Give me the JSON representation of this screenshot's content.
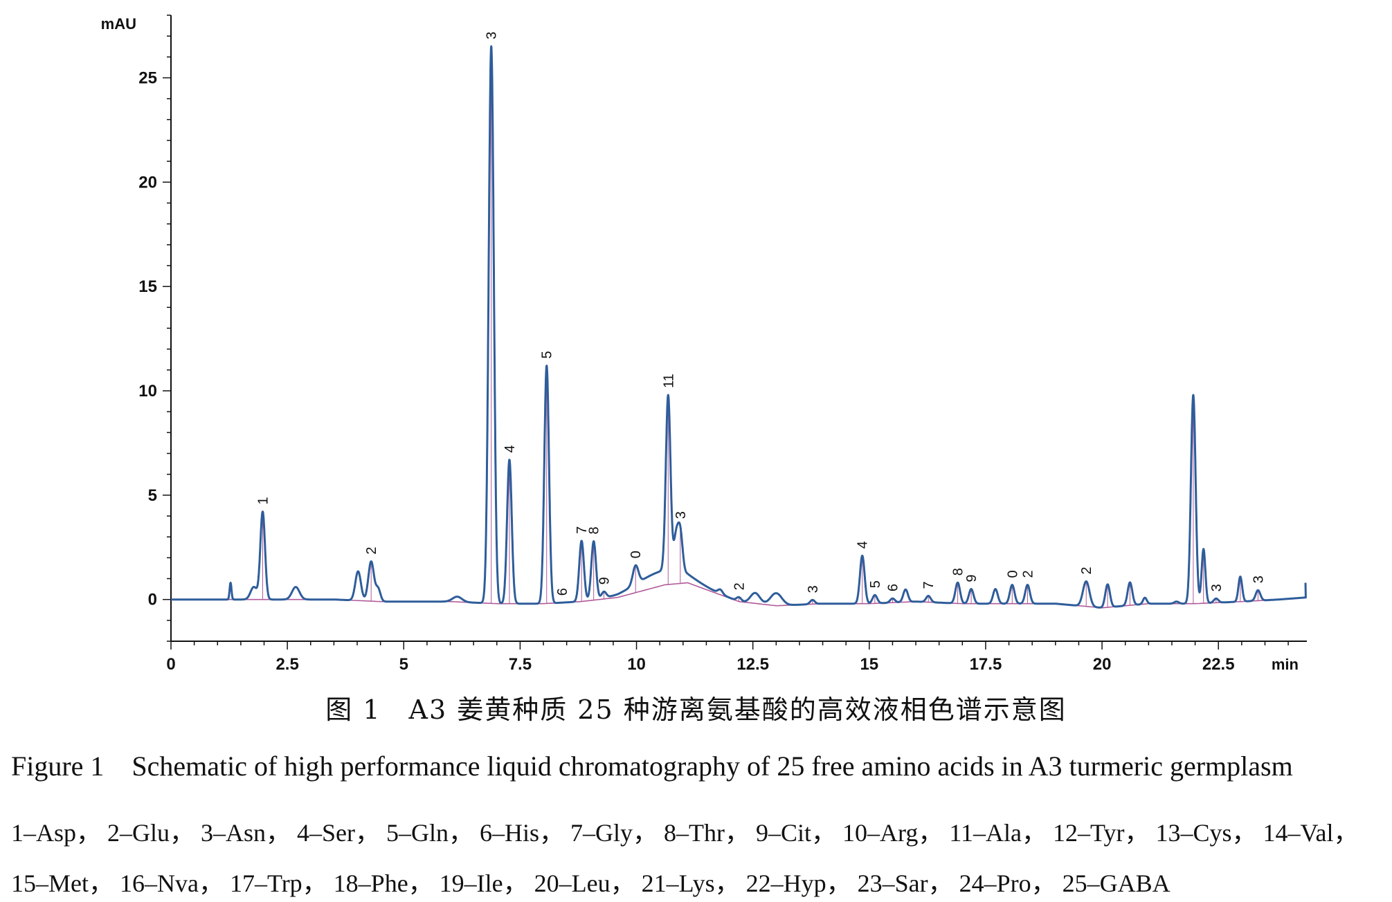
{
  "chart_data": {
    "type": "line",
    "ylabel": "mAU",
    "xlabel": "min",
    "xlim": [
      0,
      24.4
    ],
    "ylim": [
      -2,
      28
    ],
    "x_ticks": [
      0,
      2.5,
      5,
      7.5,
      10,
      12.5,
      15,
      17.5,
      20,
      22.5
    ],
    "x_tick_labels": [
      "0",
      "2.5",
      "5",
      "7.5",
      "10",
      "12.5",
      "15",
      "17.5",
      "20",
      "22.5"
    ],
    "y_ticks": [
      0,
      5,
      10,
      15,
      20,
      25
    ],
    "y_tick_labels": [
      "0",
      "5",
      "10",
      "15",
      "20",
      "25"
    ],
    "grid": false,
    "series_color": "#2e5d9a",
    "baseline_color": "#b05a9a",
    "baseline": [
      0,
      0,
      0,
      0,
      -0.1,
      -0.1,
      -0.2,
      -0.2,
      -0.1,
      0.1,
      0.7,
      0.8,
      -0.1,
      -0.3,
      -0.2,
      -0.2,
      -0.1,
      -0.2,
      -0.2,
      -0.2,
      -0.4,
      -0.2,
      -0.2,
      -0.1,
      0,
      0.1
    ],
    "baseline_x": [
      0,
      1.5,
      2.7,
      3.5,
      4.5,
      6.0,
      7.0,
      8.0,
      8.8,
      9.6,
      10.6,
      11.1,
      12.2,
      13.0,
      14.0,
      15.0,
      16.0,
      17.0,
      18.0,
      19.0,
      20.0,
      21.0,
      22.0,
      23.0,
      23.8,
      24.4
    ],
    "peaks": [
      {
        "label": "1",
        "rt": 1.97,
        "height": 4.2,
        "width": 0.05
      },
      {
        "label": "2",
        "rt": 4.3,
        "height": 1.9,
        "width": 0.06
      },
      {
        "label": "3",
        "rt": 6.88,
        "height": 26.7,
        "width": 0.055
      },
      {
        "label": "4",
        "rt": 7.27,
        "height": 6.9,
        "width": 0.05
      },
      {
        "label": "5",
        "rt": 8.07,
        "height": 11.4,
        "width": 0.05
      },
      {
        "label": "6",
        "rt": 8.4,
        "height": 0.0,
        "width": 0.05
      },
      {
        "label": "7",
        "rt": 8.82,
        "height": 2.9,
        "width": 0.05
      },
      {
        "label": "8",
        "rt": 9.08,
        "height": 2.8,
        "width": 0.05
      },
      {
        "label": "9",
        "rt": 9.3,
        "height": 0.3,
        "width": 0.05
      },
      {
        "label": "0",
        "rt": 9.98,
        "height": 0.9,
        "width": 0.06
      },
      {
        "label": "11",
        "rt": 10.68,
        "height": 8.4,
        "width": 0.05
      },
      {
        "label": "3",
        "rt": 10.94,
        "height": 1.9,
        "width": 0.05
      },
      {
        "label": "2",
        "rt": 12.2,
        "height": 0.2,
        "width": 0.05
      },
      {
        "label": "3",
        "rt": 13.78,
        "height": 0.2,
        "width": 0.05
      },
      {
        "label": "4",
        "rt": 14.85,
        "height": 2.3,
        "width": 0.05
      },
      {
        "label": "5",
        "rt": 15.12,
        "height": 0.4,
        "width": 0.05
      },
      {
        "label": "6",
        "rt": 15.5,
        "height": 0.2,
        "width": 0.05
      },
      {
        "label": "7",
        "rt": 16.27,
        "height": 0.3,
        "width": 0.05
      },
      {
        "label": "8",
        "rt": 16.9,
        "height": 1.0,
        "width": 0.05
      },
      {
        "label": "9",
        "rt": 17.19,
        "height": 0.7,
        "width": 0.05
      },
      {
        "label": "0",
        "rt": 18.07,
        "height": 0.9,
        "width": 0.05
      },
      {
        "label": "2",
        "rt": 18.4,
        "height": 0.9,
        "width": 0.05
      },
      {
        "label": "2",
        "rt": 19.66,
        "height": 1.2,
        "width": 0.07
      },
      {
        "label": "",
        "rt": 20.12,
        "height": 1.1,
        "width": 0.05
      },
      {
        "label": "",
        "rt": 20.6,
        "height": 1.1,
        "width": 0.05
      },
      {
        "label": "",
        "rt": 21.96,
        "height": 10.0,
        "width": 0.05
      },
      {
        "label": "",
        "rt": 22.18,
        "height": 2.6,
        "width": 0.04
      },
      {
        "label": "3",
        "rt": 22.45,
        "height": 0.2,
        "width": 0.05
      },
      {
        "label": "",
        "rt": 22.97,
        "height": 1.2,
        "width": 0.04
      },
      {
        "label": "3",
        "rt": 23.35,
        "height": 0.5,
        "width": 0.05
      }
    ],
    "minor_bumps": [
      {
        "rt": 1.28,
        "height": 0.8,
        "width": 0.02
      },
      {
        "rt": 1.78,
        "height": 0.6,
        "width": 0.07
      },
      {
        "rt": 2.68,
        "height": 0.6,
        "width": 0.08
      },
      {
        "rt": 4.02,
        "height": 1.4,
        "width": 0.06
      },
      {
        "rt": 4.45,
        "height": 0.6,
        "width": 0.05
      },
      {
        "rt": 6.15,
        "height": 0.25,
        "width": 0.1
      },
      {
        "rt": 10.85,
        "height": 1.6,
        "width": 0.05
      },
      {
        "rt": 11.8,
        "height": 0.2,
        "width": 0.05
      },
      {
        "rt": 12.55,
        "height": 0.5,
        "width": 0.1
      },
      {
        "rt": 13.0,
        "height": 0.6,
        "width": 0.12
      },
      {
        "rt": 15.78,
        "height": 0.6,
        "width": 0.05
      },
      {
        "rt": 17.71,
        "height": 0.7,
        "width": 0.05
      },
      {
        "rt": 20.92,
        "height": 0.3,
        "width": 0.04
      },
      {
        "rt": 21.6,
        "height": 0.1,
        "width": 0.05
      }
    ],
    "broad_hump": {
      "center": 10.55,
      "height": 0.7,
      "width": 0.55
    }
  },
  "caption": {
    "cn": "图 1　A3 姜黄种质 25 种游离氨基酸的高效液相色谱示意图",
    "en": "Figure 1　Schematic of high performance liquid chromatography of 25 free amino acids in A3 turmeric germplasm"
  },
  "legend": {
    "line1": "1–Asp， 2–Glu， 3–Asn， 4–Ser， 5–Gln， 6–His， 7–Gly， 8–Thr， 9–Cit， 10–Arg， 11–Ala， 12–Tyr， 13–Cys， 14–Val，",
    "line2": "15–Met， 16–Nva， 17–Trp， 18–Phe， 19–Ile， 20–Leu， 21–Lys， 22–Hyp， 23–Sar， 24–Pro， 25–GABA"
  }
}
